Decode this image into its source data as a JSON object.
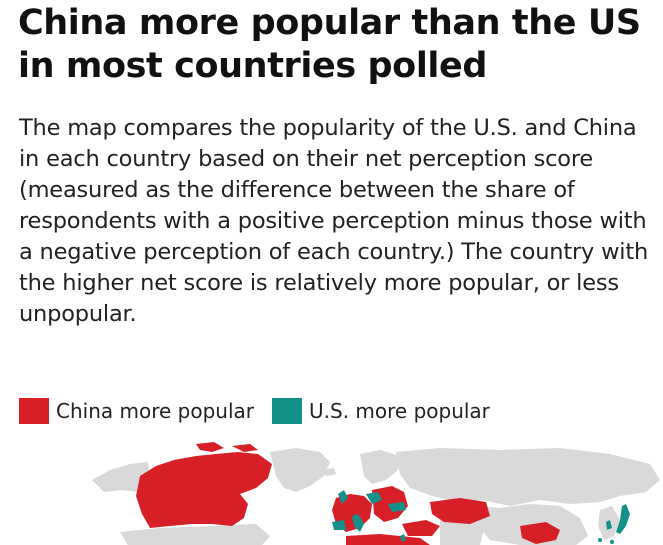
{
  "headline": "China more popular than the US in most countries polled",
  "description": "The map compares the popularity of the U.S. and China in each country based on their net perception score (measured as the difference between the share of respondents with a positive perception minus those with a negative perception of each country.) The country with the higher net score is relatively more popular, or less unpopular.",
  "legend": {
    "china": {
      "label": "China more popular",
      "color": "#d61f26"
    },
    "us": {
      "label": "U.S. more popular",
      "color": "#14908a"
    }
  },
  "map": {
    "land_color": "#d9d9d9",
    "china_color": "#d61f26",
    "us_color": "#14908a"
  }
}
